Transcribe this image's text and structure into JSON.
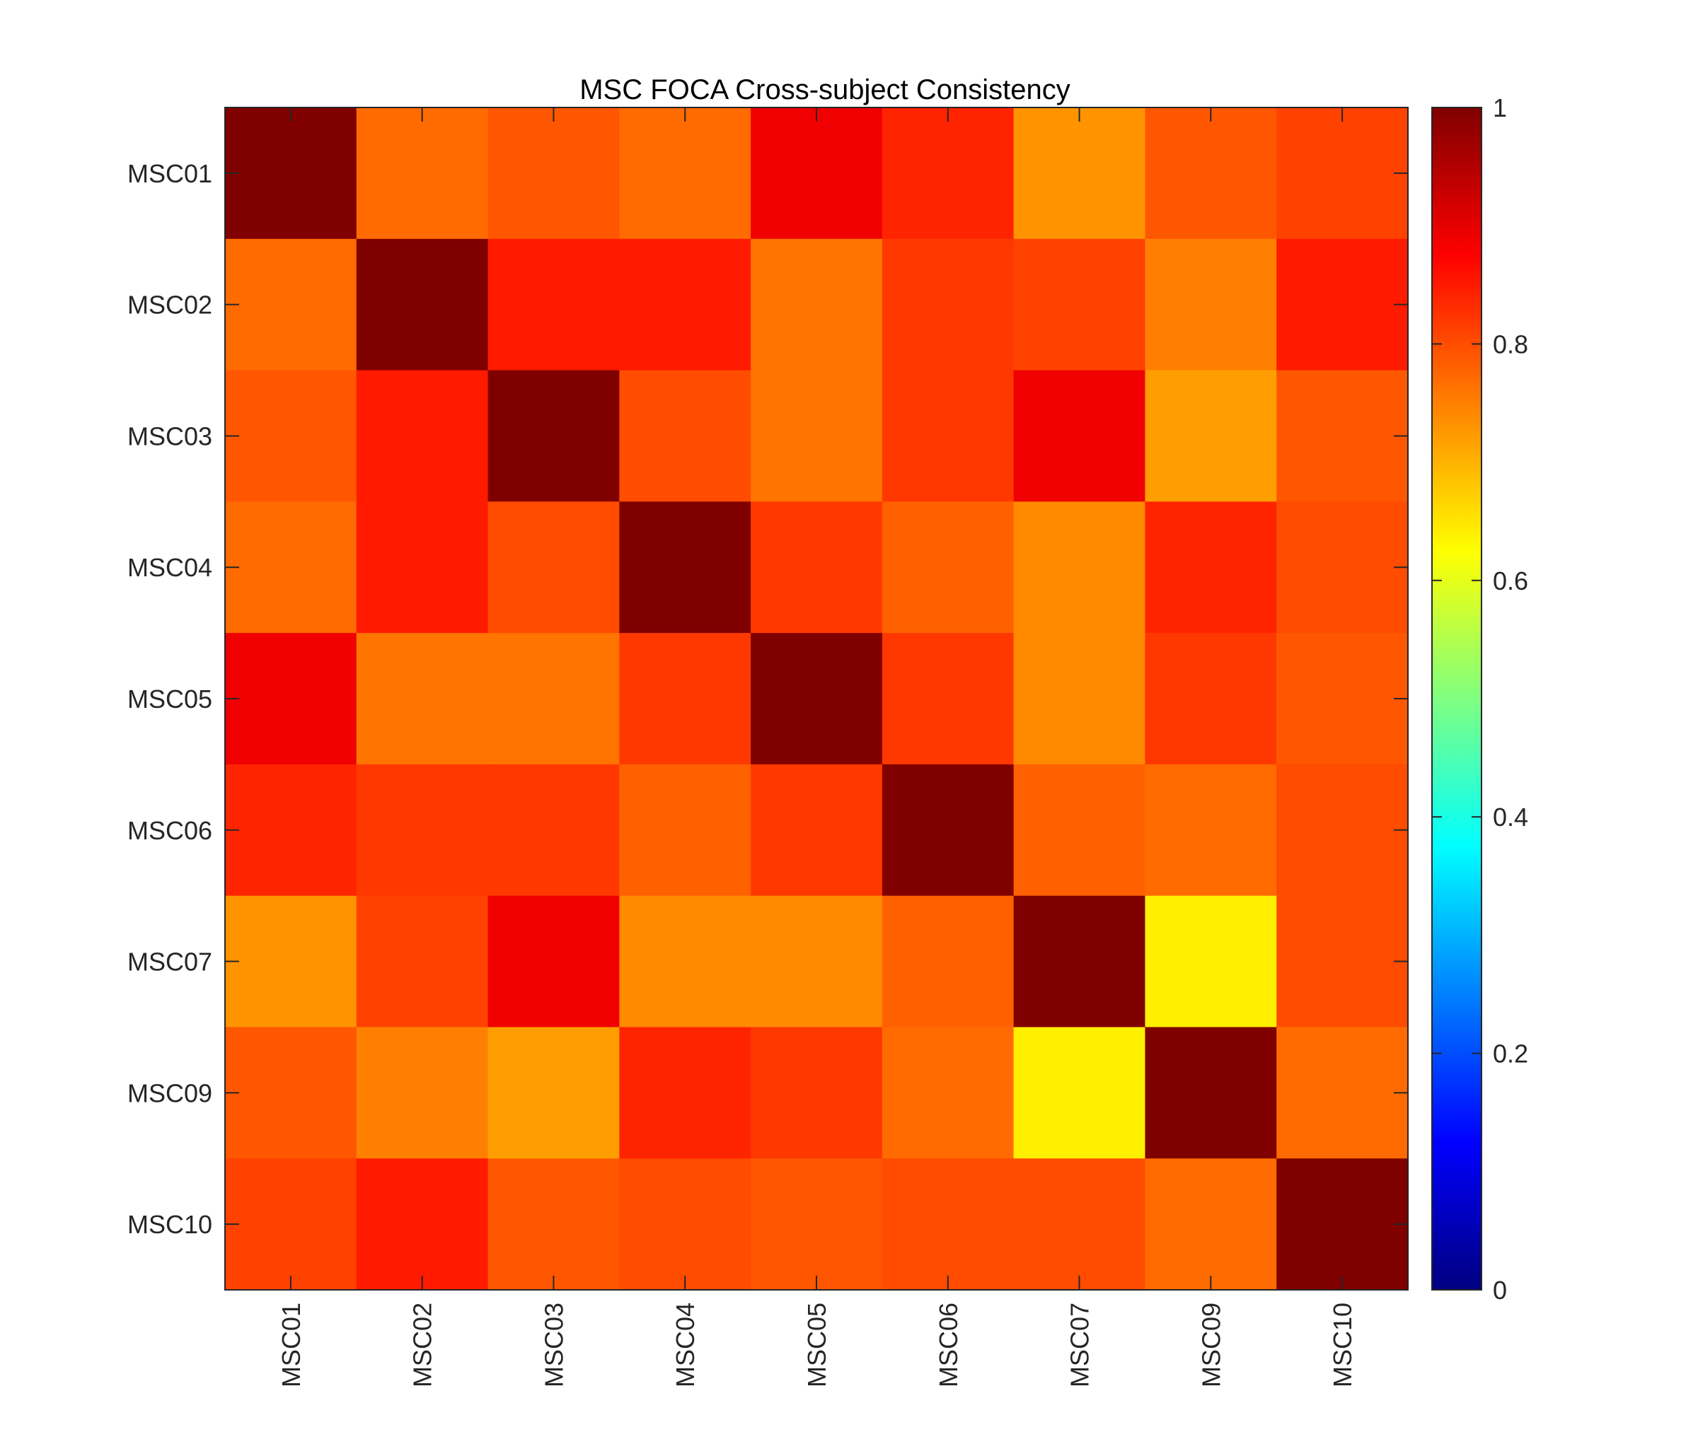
{
  "chart_data": {
    "type": "heatmap",
    "title": "MSC FOCA Cross-subject Consistency",
    "xlabel": "",
    "ylabel": "",
    "x_categories": [
      "MSC01",
      "MSC02",
      "MSC03",
      "MSC04",
      "MSC05",
      "MSC06",
      "MSC07",
      "MSC09",
      "MSC10"
    ],
    "y_categories": [
      "MSC01",
      "MSC02",
      "MSC03",
      "MSC04",
      "MSC05",
      "MSC06",
      "MSC07",
      "MSC09",
      "MSC10"
    ],
    "values": [
      [
        1.0,
        0.77,
        0.79,
        0.77,
        0.89,
        0.84,
        0.73,
        0.79,
        0.81
      ],
      [
        0.77,
        1.0,
        0.85,
        0.85,
        0.76,
        0.82,
        0.81,
        0.75,
        0.85
      ],
      [
        0.79,
        0.85,
        1.0,
        0.8,
        0.76,
        0.82,
        0.89,
        0.72,
        0.79
      ],
      [
        0.77,
        0.85,
        0.8,
        1.0,
        0.82,
        0.78,
        0.74,
        0.84,
        0.8
      ],
      [
        0.89,
        0.76,
        0.76,
        0.82,
        1.0,
        0.82,
        0.74,
        0.82,
        0.79
      ],
      [
        0.84,
        0.82,
        0.82,
        0.78,
        0.82,
        1.0,
        0.78,
        0.77,
        0.8
      ],
      [
        0.73,
        0.81,
        0.89,
        0.74,
        0.74,
        0.78,
        1.0,
        0.64,
        0.8
      ],
      [
        0.79,
        0.75,
        0.72,
        0.84,
        0.82,
        0.77,
        0.64,
        1.0,
        0.77
      ],
      [
        0.81,
        0.85,
        0.79,
        0.8,
        0.79,
        0.8,
        0.8,
        0.77,
        1.0
      ]
    ],
    "colormap": "jet",
    "clim": [
      0,
      1
    ],
    "colorbar": {
      "ticks": [
        0,
        0.2,
        0.4,
        0.6,
        0.8,
        1
      ],
      "tick_labels": [
        "0",
        "0.2",
        "0.4",
        "0.6",
        "0.8",
        "1"
      ],
      "placement": "right"
    },
    "x_tick_rotation": "vertical",
    "grid": false
  },
  "colors": {
    "axis": "#262626",
    "background": "#ffffff"
  }
}
